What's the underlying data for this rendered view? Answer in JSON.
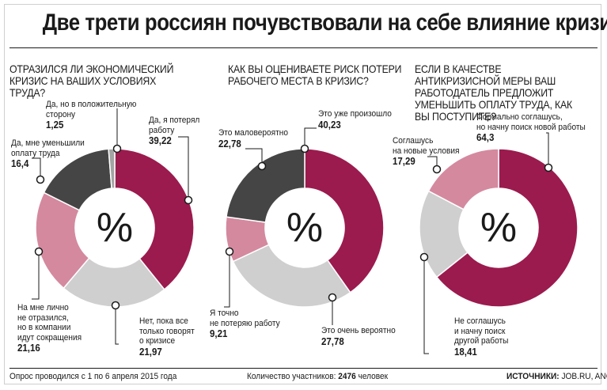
{
  "title": "Две трети россиян почувствовали на себе влияние кризиса",
  "center_symbol": "%",
  "colors": {
    "crimson": "#9b1b4e",
    "pink": "#d4899f",
    "lightgray": "#cfcfcf",
    "dark": "#454545",
    "gray": "#a3a3a3"
  },
  "chart_data": [
    {
      "type": "pie",
      "title": "ОТРАЗИЛСЯ ЛИ ЭКОНОМИЧЕСКИЙ КРИЗИС НА ВАШИХ УСЛОВИЯХ ТРУДА?",
      "slices": [
        {
          "label": "Да, я потерял работу",
          "value": 39.22,
          "value_text": "39,22",
          "color": "#9b1b4e"
        },
        {
          "label": "Нет, пока все только говорят о кризисе",
          "value": 21.97,
          "value_text": "21,97",
          "color": "#cfcfcf"
        },
        {
          "label": "На мне лично не отразился, но в компании идут сокращения",
          "value": 21.16,
          "value_text": "21,16",
          "color": "#d4899f"
        },
        {
          "label": "Да, мне уменьшили оплату труда",
          "value": 16.4,
          "value_text": "16,4",
          "color": "#454545"
        },
        {
          "label": "Да, но в положительную сторону",
          "value": 1.25,
          "value_text": "1,25",
          "color": "#a3a3a3"
        }
      ]
    },
    {
      "type": "pie",
      "title": "КАК ВЫ ОЦЕНИВАЕТЕ РИСК ПОТЕРИ РАБОЧЕГО МЕСТА В КРИЗИС?",
      "slices": [
        {
          "label": "Это уже произошло",
          "value": 40.23,
          "value_text": "40,23",
          "color": "#9b1b4e"
        },
        {
          "label": "Это очень вероятно",
          "value": 27.78,
          "value_text": "27,78",
          "color": "#cfcfcf"
        },
        {
          "label": "Я точно не потеряю работу",
          "value": 9.21,
          "value_text": "9,21",
          "color": "#d4899f"
        },
        {
          "label": "Это маловероятно",
          "value": 22.78,
          "value_text": "22,78",
          "color": "#454545"
        }
      ]
    },
    {
      "type": "pie",
      "title": "ЕСЛИ В КАЧЕСТВЕ АНТИКРИЗИСНОЙ МЕРЫ ВАШ РАБОТОДАТЕЛЬ ПРЕДЛОЖИТ УМЕНЬШИТЬ ОПЛАТУ ТРУДА, КАК ВЫ ПОСТУПИТЕ?",
      "slices": [
        {
          "label": "Формально соглашусь, но начну поиск новой работы",
          "value": 64.3,
          "value_text": "64,3",
          "color": "#9b1b4e"
        },
        {
          "label": "Не соглашусь и начну поиск другой работы",
          "value": 18.41,
          "value_text": "18,41",
          "color": "#cfcfcf"
        },
        {
          "label": "Соглашусь на новые условия",
          "value": 17.29,
          "value_text": "17,29",
          "color": "#d4899f"
        }
      ]
    }
  ],
  "labels": {
    "c1": [
      {
        "text": "Да, но в положительную\nсторону",
        "value": "1,25"
      },
      {
        "text": "Да, я потерял\nработу",
        "value": "39,22"
      },
      {
        "text": "Да, мне уменьшили\nоплату труда",
        "value": "16,4"
      },
      {
        "text": "На мне лично\nне отразился,\nно в компании\nидут сокращения",
        "value": "21,16"
      },
      {
        "text": "Нет, пока все\nтолько говорят\nо кризисе",
        "value": "21,97"
      }
    ],
    "c2": [
      {
        "text": "Это уже произошло",
        "value": "40,23"
      },
      {
        "text": "Это маловероятно",
        "value": "22,78"
      },
      {
        "text": "Я точно\nне потеряю работу",
        "value": "9,21"
      },
      {
        "text": "Это очень вероятно",
        "value": "27,78"
      }
    ],
    "c3": [
      {
        "text": "Формально соглашусь,\nно начну поиск новой работы",
        "value": "64,3"
      },
      {
        "text": "Соглашусь\nна новые условия",
        "value": "17,29"
      },
      {
        "text": "Не соглашусь\nи начну поиск\nдругой работы",
        "value": "18,41"
      }
    ]
  },
  "footer": {
    "left": "Опрос проводился с 1 по 6 апреля 2015 года",
    "count_label": "Количество участников:",
    "count_value": "2476",
    "count_unit": "человек",
    "source_label": "ИСТОЧНИКИ:",
    "source_value": "JOB.RU, ANCOR"
  }
}
